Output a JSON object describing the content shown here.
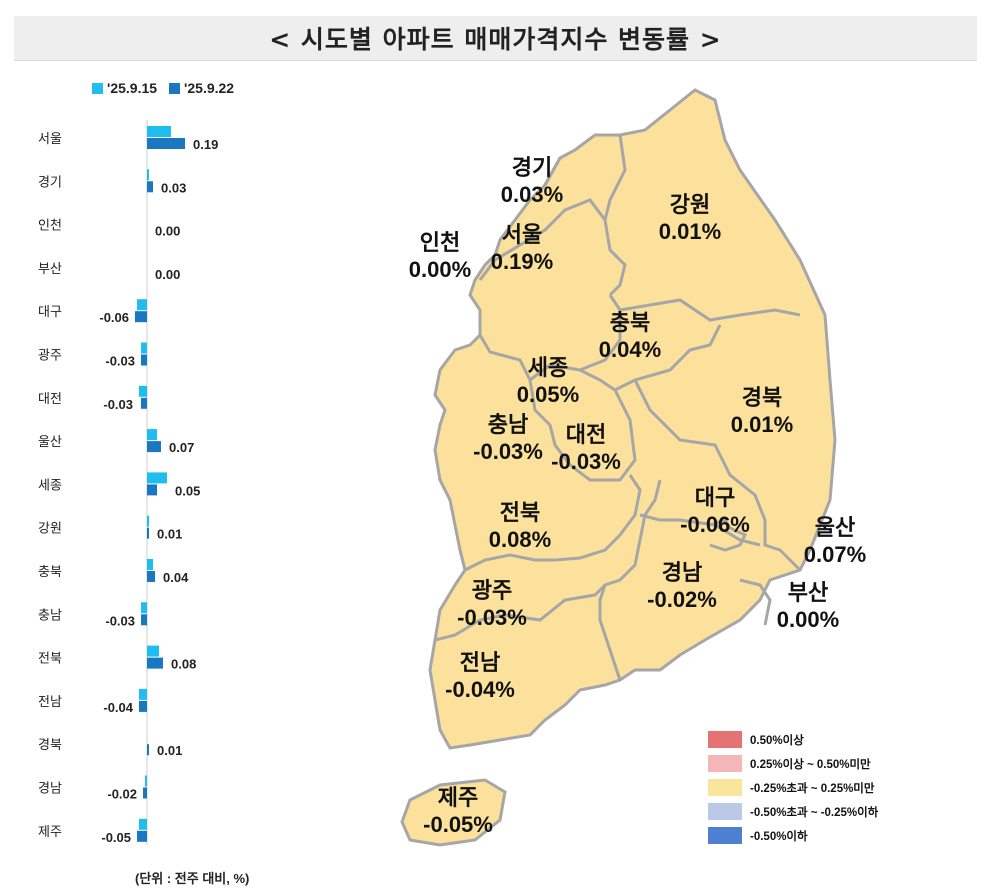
{
  "title": "< 시도별 아파트 매매가격지수 변동률 >",
  "legend_top": [
    {
      "label": "'25.9.15",
      "color": "#1fbdf0"
    },
    {
      "label": "'25.9.22",
      "color": "#1a78c2"
    }
  ],
  "unit_note": "(단위 : 전주 대비, %)",
  "map_legend": [
    {
      "label": "0.50%이상",
      "color": "#e57373"
    },
    {
      "label": "0.25%이상 ~ 0.50%미만",
      "color": "#f4b6b6"
    },
    {
      "label": "-0.25%초과 ~ 0.25%미만",
      "color": "#fbe49c"
    },
    {
      "label": "-0.50%초과 ~ -0.25%이하",
      "color": "#b9c9e6"
    },
    {
      "label": "-0.50%이하",
      "color": "#4f7fd1"
    }
  ],
  "chart_data": {
    "type": "bar",
    "orientation": "horizontal",
    "categories": [
      "서울",
      "경기",
      "인천",
      "부산",
      "대구",
      "광주",
      "대전",
      "울산",
      "세종",
      "강원",
      "충북",
      "충남",
      "전북",
      "전남",
      "경북",
      "경남",
      "제주"
    ],
    "series": [
      {
        "name": "'25.9.15",
        "values": [
          0.12,
          0.01,
          0.0,
          0.0,
          -0.05,
          -0.03,
          -0.04,
          0.05,
          0.1,
          0.01,
          0.03,
          -0.03,
          0.06,
          -0.04,
          0.0,
          -0.01,
          -0.04
        ]
      },
      {
        "name": "'25.9.22",
        "values": [
          0.19,
          0.03,
          0.0,
          0.0,
          -0.06,
          -0.03,
          -0.03,
          0.07,
          0.05,
          0.01,
          0.04,
          -0.03,
          0.08,
          -0.04,
          0.01,
          -0.02,
          -0.05
        ]
      }
    ],
    "data_labels": [
      "0.19",
      "0.03",
      "0.00",
      "0.00",
      "-0.06",
      "-0.03",
      "-0.03",
      "0.07",
      "0.05",
      "0.01",
      "0.04",
      "-0.03",
      "0.08",
      "-0.04",
      "0.01",
      "-0.02",
      "-0.05"
    ]
  },
  "map_regions": [
    {
      "name": "경기",
      "value": "0.03%"
    },
    {
      "name": "강원",
      "value": "0.01%"
    },
    {
      "name": "인천",
      "value": "0.00%"
    },
    {
      "name": "서울",
      "value": "0.19%"
    },
    {
      "name": "충북",
      "value": "0.04%"
    },
    {
      "name": "세종",
      "value": "0.05%"
    },
    {
      "name": "경북",
      "value": "0.01%"
    },
    {
      "name": "충남",
      "value": "-0.03%"
    },
    {
      "name": "대전",
      "value": "-0.03%"
    },
    {
      "name": "대구",
      "value": "-0.06%"
    },
    {
      "name": "울산",
      "value": "0.07%"
    },
    {
      "name": "전북",
      "value": "0.08%"
    },
    {
      "name": "경남",
      "value": "-0.02%"
    },
    {
      "name": "부산",
      "value": "0.00%"
    },
    {
      "name": "광주",
      "value": "-0.03%"
    },
    {
      "name": "전남",
      "value": "-0.04%"
    },
    {
      "name": "제주",
      "value": "-0.05%"
    }
  ],
  "map_fill": "#fbe19b",
  "map_stroke": "#a6a6a6"
}
